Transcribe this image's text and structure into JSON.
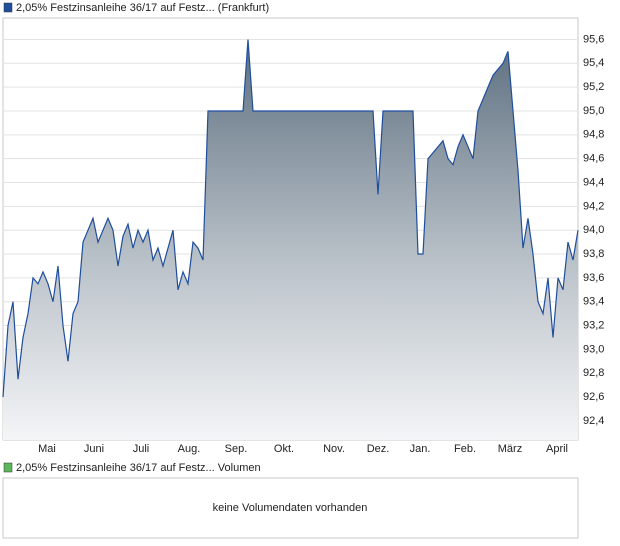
{
  "chart_data": {
    "type": "area",
    "series": [
      {
        "name": "2,05% Festzinsanleihe 36/17 auf Festz... (Frankfurt)",
        "color": "#1f4e9c",
        "values": [
          92.6,
          93.2,
          93.4,
          92.75,
          93.1,
          93.3,
          93.6,
          93.55,
          93.65,
          93.55,
          93.4,
          93.7,
          93.2,
          92.9,
          93.3,
          93.4,
          93.9,
          94.0,
          94.1,
          93.9,
          94.0,
          94.1,
          94.0,
          93.7,
          93.95,
          94.05,
          93.85,
          94.0,
          93.9,
          94.0,
          93.75,
          93.85,
          93.7,
          93.85,
          94.0,
          93.5,
          93.65,
          93.55,
          93.9,
          93.85,
          93.75,
          95.0,
          95.0,
          95.0,
          95.0,
          95.0,
          95.0,
          95.0,
          95.0,
          95.6,
          95.0,
          95.0,
          95.0,
          95.0,
          95.0,
          95.0,
          95.0,
          95.0,
          95.0,
          95.0,
          95.0,
          95.0,
          95.0,
          95.0,
          95.0,
          95.0,
          95.0,
          95.0,
          95.0,
          95.0,
          95.0,
          95.0,
          95.0,
          95.0,
          95.0,
          94.3,
          95.0,
          95.0,
          95.0,
          95.0,
          95.0,
          95.0,
          95.0,
          93.8,
          93.8,
          94.6,
          94.65,
          94.7,
          94.75,
          94.6,
          94.55,
          94.7,
          94.8,
          94.7,
          94.6,
          95.0,
          95.1,
          95.2,
          95.3,
          95.35,
          95.4,
          95.5,
          95.0,
          94.5,
          93.85,
          94.1,
          93.8,
          93.4,
          93.3,
          93.6,
          93.1,
          93.6,
          93.5,
          93.9,
          93.75,
          94.0
        ]
      }
    ],
    "xlim": [
      0,
      115
    ],
    "xticks": [
      {
        "value": 8.8,
        "label": "Mai"
      },
      {
        "value": 18.2,
        "label": "Juni"
      },
      {
        "value": 27.6,
        "label": "Juli"
      },
      {
        "value": 37.2,
        "label": "Aug."
      },
      {
        "value": 46.6,
        "label": "Sep."
      },
      {
        "value": 56.2,
        "label": "Okt."
      },
      {
        "value": 66.2,
        "label": "Nov."
      },
      {
        "value": 75,
        "label": "Dez."
      },
      {
        "value": 83.4,
        "label": "Jan."
      },
      {
        "value": 92.4,
        "label": "Feb."
      },
      {
        "value": 101.4,
        "label": "März"
      },
      {
        "value": 110.8,
        "label": "April"
      }
    ],
    "ylim": [
      92.24,
      95.78
    ],
    "yticks": [
      {
        "value": 92.4,
        "label": "92,4"
      },
      {
        "value": 92.6,
        "label": "92,6"
      },
      {
        "value": 92.8,
        "label": "92,8"
      },
      {
        "value": 93.0,
        "label": "93,0"
      },
      {
        "value": 93.2,
        "label": "93,2"
      },
      {
        "value": 93.4,
        "label": "93,4"
      },
      {
        "value": 93.6,
        "label": "93,6"
      },
      {
        "value": 93.8,
        "label": "93,8"
      },
      {
        "value": 94.0,
        "label": "94,0"
      },
      {
        "value": 94.2,
        "label": "94,2"
      },
      {
        "value": 94.4,
        "label": "94,4"
      },
      {
        "value": 94.6,
        "label": "94,6"
      },
      {
        "value": 94.8,
        "label": "94,8"
      },
      {
        "value": 95.0,
        "label": "95,0"
      },
      {
        "value": 95.2,
        "label": "95,2"
      },
      {
        "value": 95.4,
        "label": "95,4"
      },
      {
        "value": 95.6,
        "label": "95,6"
      }
    ],
    "grid": true,
    "volume_title": "2,05% Festzinsanleihe 36/17 auf Festz... Volumen",
    "volume_color": "#5cb85c",
    "volume_message": "keine Volumendaten vorhanden"
  }
}
